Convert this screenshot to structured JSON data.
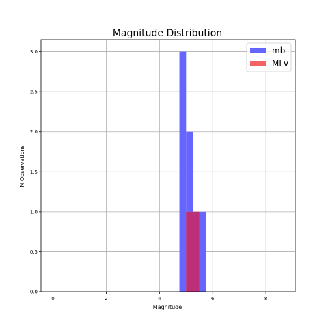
{
  "chart_data": {
    "type": "bar",
    "title": "Magnitude Distribution",
    "xlabel": "Magnitude",
    "ylabel": "N Observations",
    "xlim": [
      -0.45,
      9.1
    ],
    "ylim": [
      0,
      3.15
    ],
    "x_ticks": [
      0,
      2,
      4,
      6,
      8
    ],
    "y_ticks": [
      0.0,
      0.5,
      1.0,
      1.5,
      2.0,
      2.5,
      3.0
    ],
    "grid": true,
    "legend_position": "top-right",
    "series": [
      {
        "name": "mb",
        "color": "#6666ff",
        "bins": [
          {
            "x0": 4.75,
            "x1": 5.0,
            "count": 3
          },
          {
            "x0": 5.0,
            "x1": 5.25,
            "count": 2
          },
          {
            "x0": 5.25,
            "x1": 5.5,
            "count": 1
          },
          {
            "x0": 5.5,
            "x1": 5.75,
            "count": 1
          }
        ]
      },
      {
        "name": "MLv",
        "color": "#f26464",
        "bins": [
          {
            "x0": 5.0,
            "x1": 5.25,
            "count": 1
          },
          {
            "x0": 5.25,
            "x1": 5.5,
            "count": 1
          }
        ]
      }
    ],
    "overlap_color": "#bc3078"
  }
}
